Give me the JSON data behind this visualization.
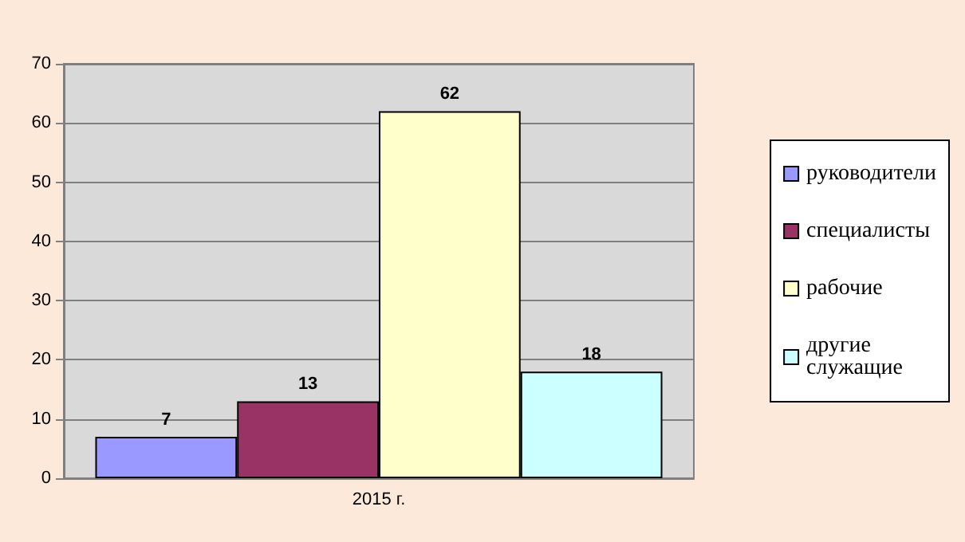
{
  "chart_data": {
    "type": "bar",
    "categories": [
      "2015 г."
    ],
    "series": [
      {
        "name": "руководители",
        "color": "#9999ff",
        "values": [
          7
        ]
      },
      {
        "name": "специалисты",
        "color": "#993366",
        "values": [
          13
        ]
      },
      {
        "name": "рабочие",
        "color": "#ffffcc",
        "values": [
          62
        ]
      },
      {
        "name": "другие служащие",
        "color": "#ccffff",
        "values": [
          18
        ]
      }
    ],
    "ylim": [
      0,
      70
    ],
    "yticks": [
      0,
      10,
      20,
      30,
      40,
      50,
      60,
      70
    ],
    "grid": "y",
    "legend": "right",
    "data_labels": true
  }
}
